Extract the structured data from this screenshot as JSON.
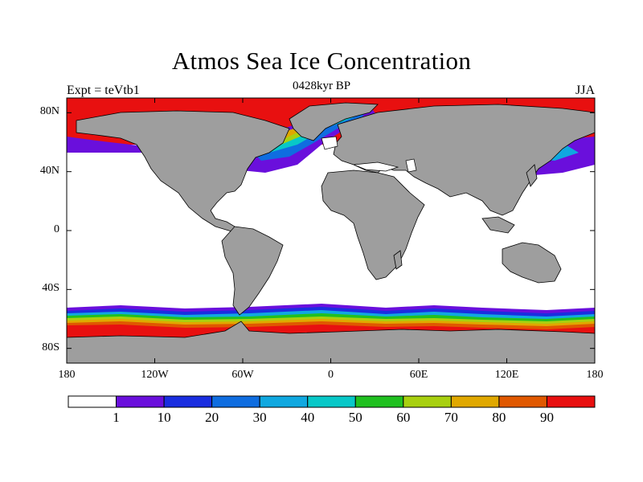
{
  "header": {
    "title": "Atmos Sea Ice Concentration",
    "subtitle": "0428kyr BP",
    "left_label": "Expt = teVtb1",
    "right_label": "JJA"
  },
  "axes": {
    "lat_ticks": [
      {
        "label": "80N",
        "value": 80
      },
      {
        "label": "40N",
        "value": 40
      },
      {
        "label": "0",
        "value": 0
      },
      {
        "label": "40S",
        "value": -40
      },
      {
        "label": "80S",
        "value": -80
      }
    ],
    "lon_ticks": [
      {
        "label": "180",
        "value": -180
      },
      {
        "label": "120W",
        "value": -120
      },
      {
        "label": "60W",
        "value": -60
      },
      {
        "label": "0",
        "value": 0
      },
      {
        "label": "60E",
        "value": 60
      },
      {
        "label": "120E",
        "value": 120
      },
      {
        "label": "180",
        "value": 180
      }
    ]
  },
  "colorbar": {
    "labels": [
      "1",
      "10",
      "20",
      "30",
      "40",
      "50",
      "60",
      "70",
      "80",
      "90"
    ],
    "colors": [
      "#ffffff",
      "#6a0fdc",
      "#1a2ee0",
      "#0f6de0",
      "#10a8e0",
      "#08c8c8",
      "#20c020",
      "#a8d010",
      "#e0a800",
      "#e05800",
      "#e81010"
    ]
  },
  "colors": {
    "land": "#9e9e9e",
    "ocean": "#ffffff",
    "ice_max": "#e81010"
  }
}
